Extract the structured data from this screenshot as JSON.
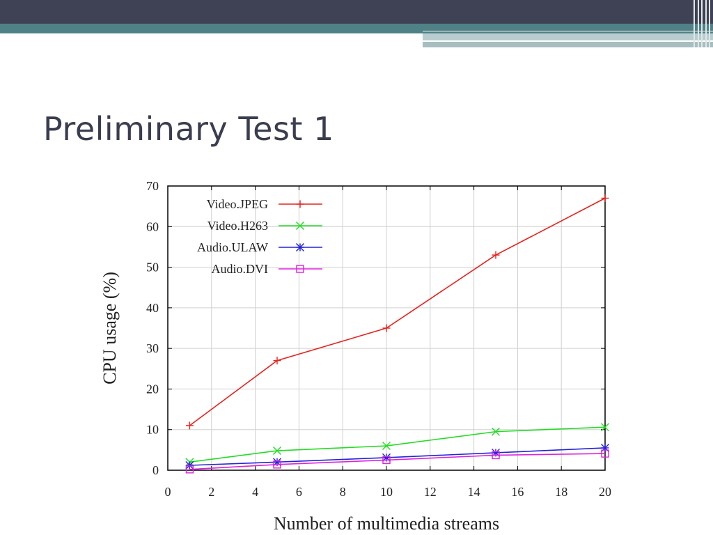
{
  "slide": {
    "title": "Preliminary Test 1"
  },
  "colors": {
    "header_dark": "#3f4155",
    "header_teal": "#4f8287",
    "title_text": "#3a3d4f"
  },
  "chart_data": {
    "type": "line",
    "xlabel": "Number of multimedia streams",
    "ylabel": "CPU usage (%)",
    "xlim": [
      0,
      20
    ],
    "ylim": [
      0,
      70
    ],
    "x_ticks": [
      0,
      2,
      4,
      6,
      8,
      10,
      12,
      14,
      16,
      18,
      20
    ],
    "y_ticks": [
      0,
      10,
      20,
      30,
      40,
      50,
      60,
      70
    ],
    "grid": true,
    "legend_position": "top-left",
    "series": [
      {
        "name": "Video.JPEG",
        "color": "#e8221c",
        "marker": "plus",
        "x": [
          1,
          5,
          10,
          15,
          20
        ],
        "y": [
          11,
          27,
          35,
          53,
          67
        ]
      },
      {
        "name": "Video.H263",
        "color": "#22dd22",
        "marker": "cross",
        "x": [
          1,
          5,
          10,
          15,
          20
        ],
        "y": [
          2,
          4.8,
          6,
          9.5,
          10.6
        ]
      },
      {
        "name": "Audio.ULAW",
        "color": "#2222dd",
        "marker": "star",
        "x": [
          1,
          5,
          10,
          15,
          20
        ],
        "y": [
          1.2,
          2,
          3.1,
          4.3,
          5.5
        ]
      },
      {
        "name": "Audio.DVI",
        "color": "#dd22dd",
        "marker": "square",
        "x": [
          1,
          5,
          10,
          15,
          20
        ],
        "y": [
          0.2,
          1.4,
          2.5,
          3.7,
          4.1
        ]
      }
    ]
  }
}
